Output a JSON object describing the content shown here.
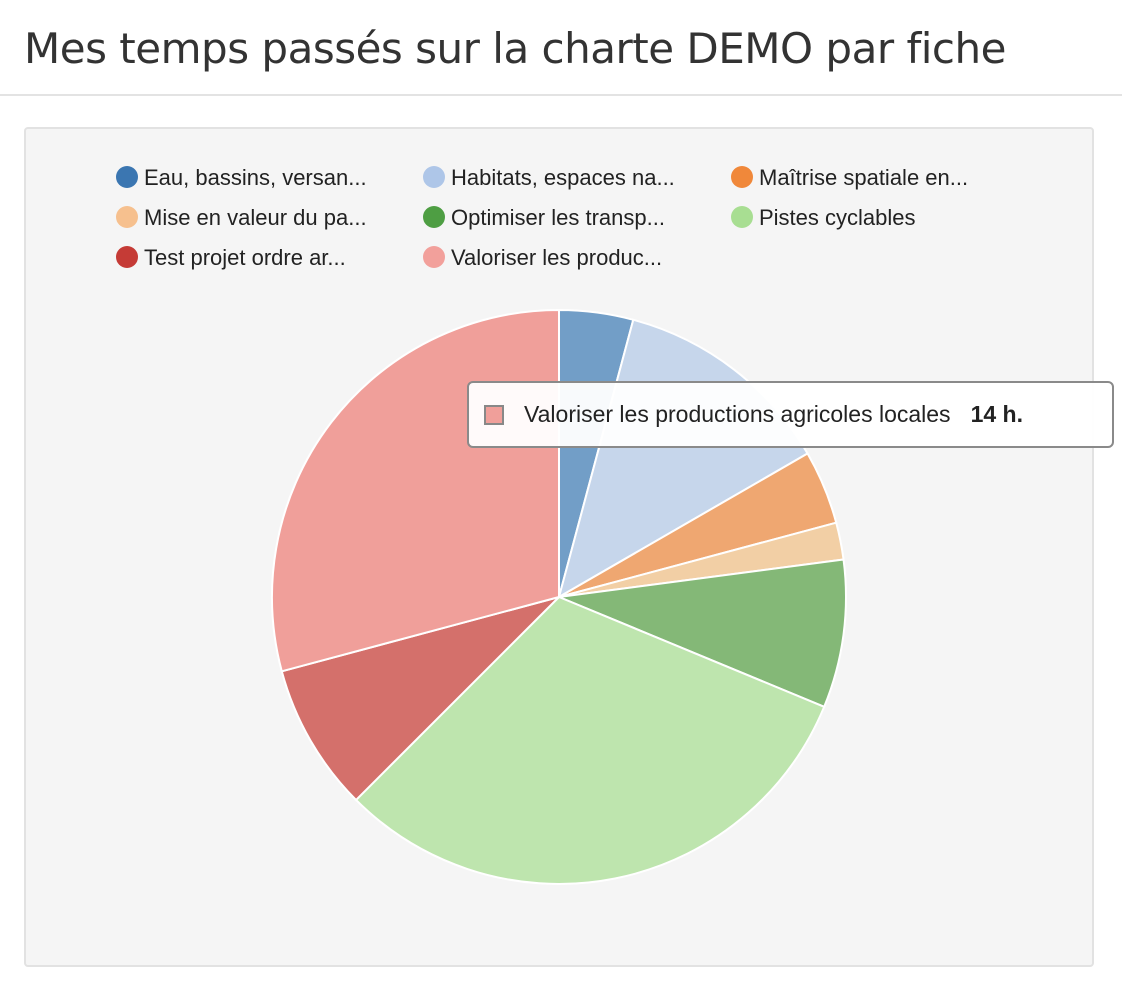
{
  "page": {
    "title": "Mes temps passés sur la charte DEMO par fiche"
  },
  "chart_data": {
    "type": "pie",
    "title": "",
    "unit": "h.",
    "legend_position": "top",
    "slices": [
      {
        "label": "Eau, bassins, versan...",
        "full_label": "Eau, bassins, versants",
        "value": 2,
        "color": "#3b76b1",
        "slice_color": "#729ec7"
      },
      {
        "label": "Habitats, espaces na...",
        "full_label": "Habitats, espaces naturels",
        "value": 6,
        "color": "#aec6e8",
        "slice_color": "#c6d6eb"
      },
      {
        "label": "Maîtrise spatiale en...",
        "full_label": "Maîtrise spatiale en",
        "value": 2,
        "color": "#f0883a",
        "slice_color": "#efa771"
      },
      {
        "label": "Mise en valeur du pa...",
        "full_label": "Mise en valeur du patrimoine",
        "value": 1,
        "color": "#f6c08e",
        "slice_color": "#f2cfa5"
      },
      {
        "label": "Optimiser les transp...",
        "full_label": "Optimiser les transports",
        "value": 4,
        "color": "#4e9e43",
        "slice_color": "#84b877"
      },
      {
        "label": "Pistes cyclables",
        "full_label": "Pistes cyclables",
        "value": 15,
        "color": "#a8de92",
        "slice_color": "#bee5ae"
      },
      {
        "label": "Test projet ordre ar...",
        "full_label": "Test projet ordre arbitraire",
        "value": 4,
        "color": "#c53b36",
        "slice_color": "#d4706b"
      },
      {
        "label": "Valoriser les produc...",
        "full_label": "Valoriser les productions agricoles locales",
        "value": 14,
        "color": "#f2a09b",
        "slice_color": "#f09f9a"
      }
    ],
    "tooltip": {
      "label": "Valoriser les productions agricoles locales",
      "value_text": "14 h.",
      "color": "#f09f9a"
    }
  }
}
